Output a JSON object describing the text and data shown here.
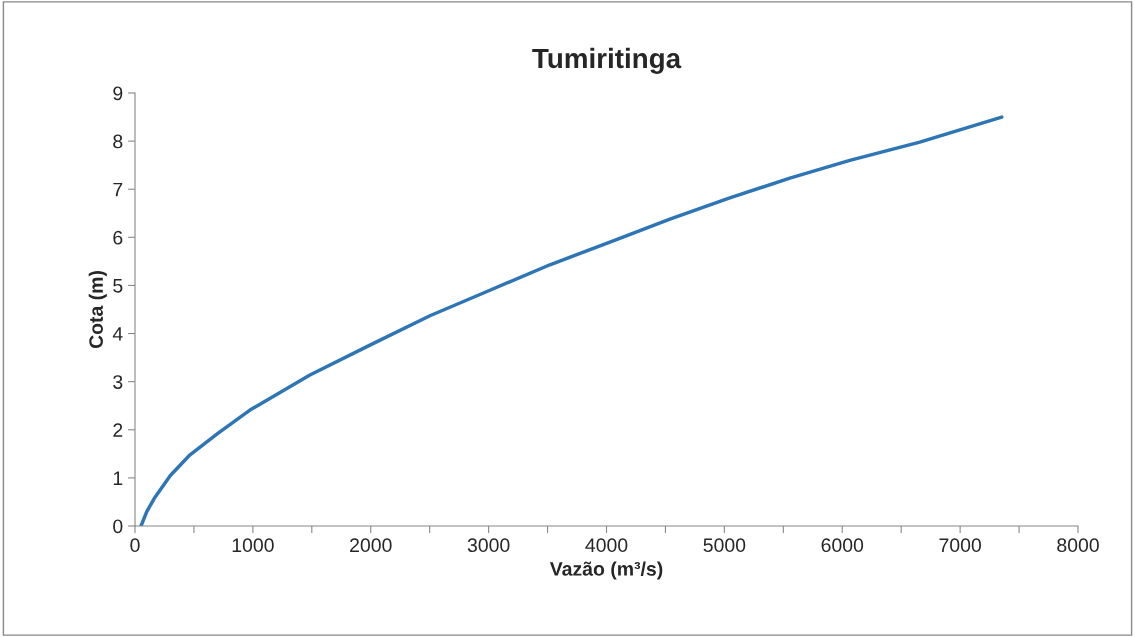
{
  "chart_data": {
    "type": "line",
    "title": "Tumiritinga",
    "xlabel": "Vazão (m³/s)",
    "ylabel": "Cota (m)",
    "series": [
      {
        "color": "#2e75b6",
        "x": [
          51,
          100,
          170,
          300,
          467,
          700,
          975,
          1484,
          1993,
          2502,
          3011,
          3520,
          4029,
          4538,
          5046,
          5556,
          6064,
          6658,
          7353
        ],
        "values": [
          0,
          0.3,
          0.6,
          1.05,
          1.48,
          1.92,
          2.41,
          3.14,
          3.76,
          4.37,
          4.9,
          5.43,
          5.9,
          6.38,
          6.82,
          7.23,
          7.6,
          7.98,
          8.5
        ]
      }
    ],
    "xlim": [
      0,
      8000
    ],
    "ylim": [
      0,
      9
    ],
    "xticks": [
      0,
      {
        "value": 500,
        "label": null
      },
      1000,
      {
        "value": 1500,
        "label": null
      },
      2000,
      {
        "value": 2500,
        "label": null
      },
      3000,
      {
        "value": 3500,
        "label": null
      },
      4000,
      {
        "value": 4500,
        "label": null
      },
      5000,
      {
        "value": 5500,
        "label": null
      },
      6000,
      {
        "value": 6500,
        "label": null
      },
      7000,
      {
        "value": 7500,
        "label": null
      },
      8000
    ],
    "yticks": [
      0,
      1,
      2,
      3,
      4,
      5,
      6,
      7,
      8,
      9
    ],
    "grid": false,
    "legend": false,
    "marker": "none",
    "line_style": "solid"
  }
}
